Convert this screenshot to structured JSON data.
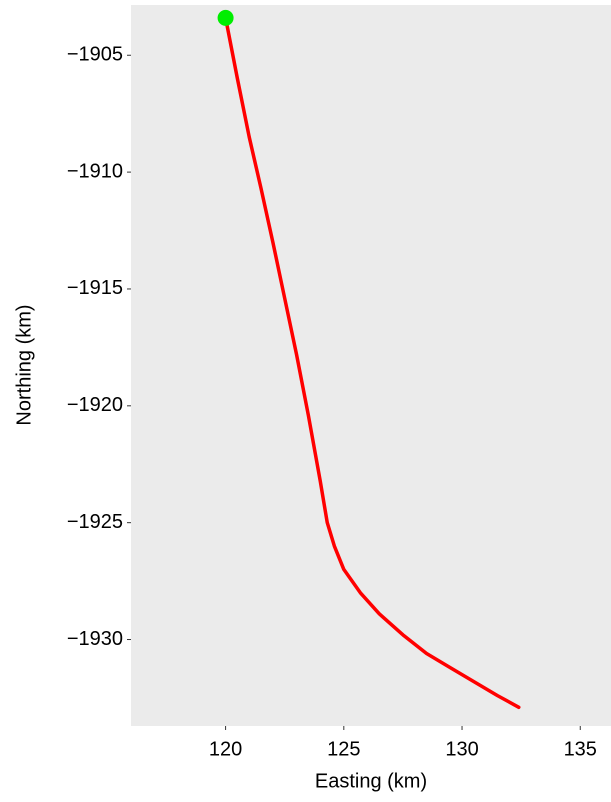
{
  "chart_data": {
    "type": "line",
    "xlabel": "Easting (km)",
    "ylabel": "Northing (km)",
    "x": [
      120.0,
      120.5,
      121.0,
      121.5,
      122.0,
      122.5,
      123.0,
      123.5,
      124.0,
      124.3,
      124.6,
      125.0,
      125.7,
      126.5,
      127.5,
      128.5,
      129.5,
      130.5,
      131.5,
      132.4
    ],
    "series": [
      {
        "color": "#ff0000",
        "values": [
          -1903.4,
          -1906.0,
          -1908.5,
          -1910.7,
          -1913.0,
          -1915.4,
          -1917.8,
          -1920.4,
          -1923.2,
          -1925.0,
          -1926.0,
          -1927.0,
          -1928.0,
          -1928.9,
          -1929.8,
          -1930.6,
          -1931.2,
          -1931.8,
          -1932.4,
          -1932.9
        ]
      }
    ],
    "start_marker_color": "#00ee00",
    "background": "#ebebeb",
    "xlim": [
      116,
      136.3
    ],
    "ylim": [
      -1933.7,
      -1902.85
    ],
    "xticks": [
      120,
      125,
      130,
      135
    ],
    "yticks": [
      {
        "value": -1905,
        "label": "−1905"
      },
      {
        "value": -1910,
        "label": "−1910"
      },
      {
        "value": -1915,
        "label": "−1915"
      },
      {
        "value": -1920,
        "label": "−1920"
      },
      {
        "value": -1925,
        "label": "−1925"
      },
      {
        "value": -1930,
        "label": "−1930"
      }
    ],
    "grid": false
  }
}
